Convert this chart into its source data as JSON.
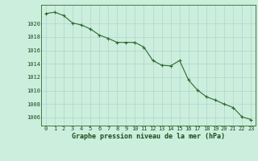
{
  "x": [
    0,
    1,
    2,
    3,
    4,
    5,
    6,
    7,
    8,
    9,
    10,
    11,
    12,
    13,
    14,
    15,
    16,
    17,
    18,
    19,
    20,
    21,
    22,
    23
  ],
  "y": [
    1021.5,
    1021.7,
    1021.2,
    1020.1,
    1019.8,
    1019.2,
    1018.3,
    1017.8,
    1017.2,
    1017.2,
    1017.2,
    1016.5,
    1014.5,
    1013.8,
    1013.7,
    1014.5,
    1011.6,
    1010.1,
    1009.1,
    1008.6,
    1008.0,
    1007.5,
    1006.1,
    1005.7
  ],
  "line_color": "#2d6a2d",
  "marker": "+",
  "marker_size": 3,
  "linewidth": 0.8,
  "bg_color": "#cceedd",
  "grid_color": "#aacccc",
  "xlabel": "Graphe pression niveau de la mer (hPa)",
  "xlabel_fontsize": 6.0,
  "xlabel_color": "#1a4a1a",
  "ytick_labels": [
    1006,
    1008,
    1010,
    1012,
    1014,
    1016,
    1018,
    1020
  ],
  "ylim": [
    1004.8,
    1022.8
  ],
  "xlim": [
    -0.5,
    23.5
  ],
  "xtick_labels": [
    "0",
    "1",
    "2",
    "3",
    "4",
    "5",
    "6",
    "7",
    "8",
    "9",
    "10",
    "11",
    "12",
    "13",
    "14",
    "15",
    "16",
    "17",
    "18",
    "19",
    "20",
    "21",
    "22",
    "23"
  ],
  "tick_fontsize": 5.0,
  "tick_color": "#1a4a1a",
  "spine_color": "#2d6a2d"
}
